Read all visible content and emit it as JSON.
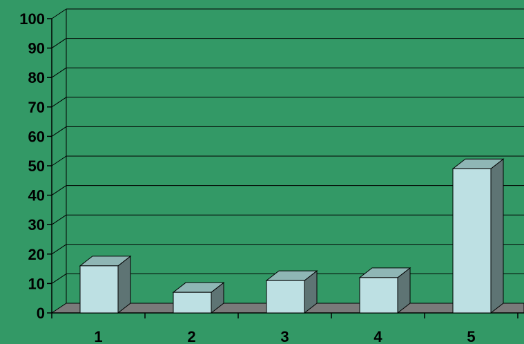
{
  "chart_data": {
    "type": "bar",
    "title": "",
    "xlabel": "",
    "ylabel": "",
    "categories": [
      "1",
      "2",
      "3",
      "4",
      "5"
    ],
    "values": [
      16,
      7,
      11,
      12,
      49
    ],
    "ylim": [
      0,
      100
    ],
    "yticks": [
      "0",
      "10",
      "20",
      "30",
      "40",
      "50",
      "60",
      "70",
      "80",
      "90",
      "100"
    ],
    "grid": true,
    "legend": "none",
    "style": "3d-column"
  },
  "colors": {
    "background": "#339966",
    "bar_front": "#BDE0E3",
    "bar_top": "#8FB6B5",
    "bar_side": "#5E7474",
    "floor": "#7A7A7A",
    "gridline": "#000000"
  }
}
